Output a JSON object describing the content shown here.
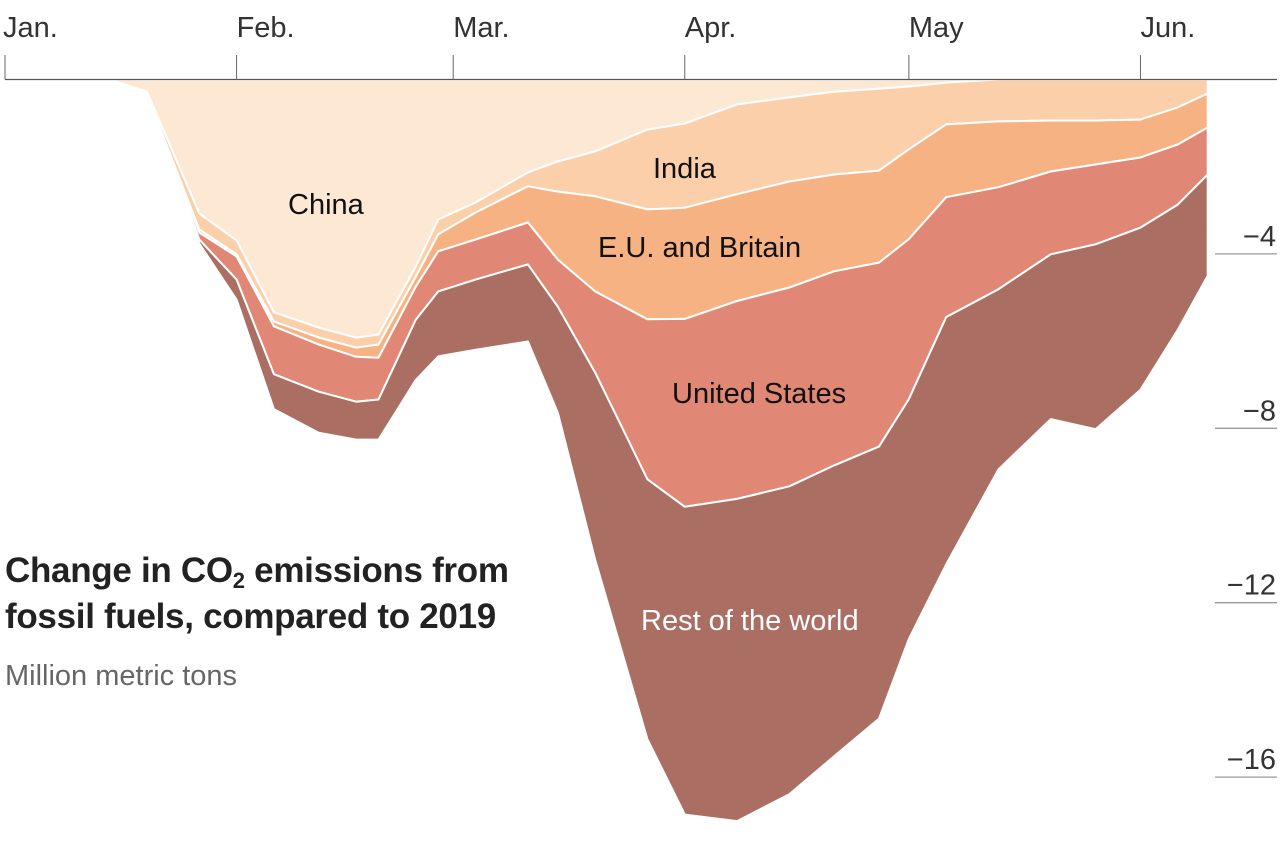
{
  "chart_data": {
    "type": "area",
    "stacked": true,
    "title_parts": [
      "Change in CO",
      "2",
      " emissions from",
      "fossil fuels, compared to 2019"
    ],
    "subtitle": "Million metric tons",
    "x_ticks": [
      "Jan.",
      "Feb.",
      "Mar.",
      "Apr.",
      "May",
      "Jun."
    ],
    "x_tick_dates": [
      "Jan 1",
      "Feb 1",
      "Mar 1",
      "Apr 1",
      "May 1",
      "Jun 1"
    ],
    "y_ticks": [
      -4,
      -8,
      -12,
      -16
    ],
    "y_tick_labels": [
      "−4",
      "−8",
      "−12",
      "−16"
    ],
    "ylim": [
      -17.7,
      0
    ],
    "xlim": [
      "Jan 1",
      "Jun 10"
    ],
    "grid": false,
    "legend": "inline labels",
    "x": [
      "Jan 15",
      "Jan 20",
      "Jan 27",
      "Feb 1",
      "Feb 6",
      "Feb 12",
      "Feb 17",
      "Feb 20",
      "Feb 25",
      "Feb 28",
      "Mar 4",
      "Mar 11",
      "Mar 15",
      "Mar 20",
      "Mar 27",
      "Apr 1",
      "Apr 8",
      "Apr 15",
      "Apr 21",
      "Apr 27",
      "May 1",
      "May 6",
      "May 13",
      "May 20",
      "May 26",
      "Jun 1",
      "Jun 6",
      "Jun 10"
    ],
    "series": [
      {
        "name": "China",
        "color": "#fce8d3",
        "label_color": "#111",
        "values": [
          0,
          -0.28,
          -3.07,
          -3.69,
          -5.34,
          -5.69,
          -5.92,
          -5.85,
          -4.29,
          -3.21,
          -2.82,
          -2.13,
          -1.88,
          -1.65,
          -1.15,
          -1.01,
          -0.57,
          -0.41,
          -0.28,
          -0.21,
          -0.16,
          -0.07,
          0,
          0,
          0,
          0,
          0,
          0
        ]
      },
      {
        "name": "India",
        "color": "#fbcfaa",
        "label_color": "#111",
        "values": [
          0,
          -0.05,
          -0.37,
          -0.32,
          -0.21,
          -0.23,
          -0.23,
          -0.23,
          -0.23,
          -0.34,
          -0.23,
          -0.32,
          -0.69,
          -1.03,
          -1.83,
          -1.93,
          -2.06,
          -1.93,
          -1.9,
          -1.88,
          -1.44,
          -0.96,
          -0.96,
          -0.94,
          -0.94,
          -0.92,
          -0.64,
          -0.32
        ]
      },
      {
        "name": "E.U. and Britain",
        "color": "#f7b283",
        "label_color": "#111",
        "values": [
          0,
          -0.02,
          -0.07,
          -0.05,
          -0.11,
          -0.16,
          -0.21,
          -0.3,
          -0.23,
          -0.39,
          -0.62,
          -0.83,
          -1.56,
          -2.18,
          -2.52,
          -2.55,
          -2.45,
          -2.43,
          -2.22,
          -2.11,
          -2.06,
          -1.67,
          -1.51,
          -1.17,
          -1.01,
          -0.87,
          -0.85,
          -0.78
        ]
      },
      {
        "name": "United States",
        "color": "#e08775",
        "label_color": "#111",
        "values": [
          0,
          -0.02,
          -0.16,
          -0.53,
          -1.1,
          -1.08,
          -1.03,
          -0.96,
          -0.76,
          -0.92,
          -0.92,
          -0.96,
          -1.08,
          -1.86,
          -3.67,
          -4.31,
          -4.54,
          -4.56,
          -4.45,
          -4.22,
          -3.67,
          -2.75,
          -2.34,
          -1.9,
          -1.83,
          -1.61,
          -1.38,
          -1.08
        ]
      },
      {
        "name": "Rest of the world",
        "color": "#aa6e63",
        "label_color": "#ffffff",
        "values": [
          0,
          -0.02,
          -0.09,
          -0.46,
          -0.8,
          -0.94,
          -0.87,
          -0.92,
          -1.38,
          -1.49,
          -1.61,
          -1.77,
          -2.43,
          -4.29,
          -5.96,
          -7.06,
          -7.39,
          -7.06,
          -6.67,
          -6.24,
          -5.5,
          -5.67,
          -4.13,
          -3.78,
          -4.24,
          -3.72,
          -2.87,
          -2.32
        ]
      }
    ]
  }
}
